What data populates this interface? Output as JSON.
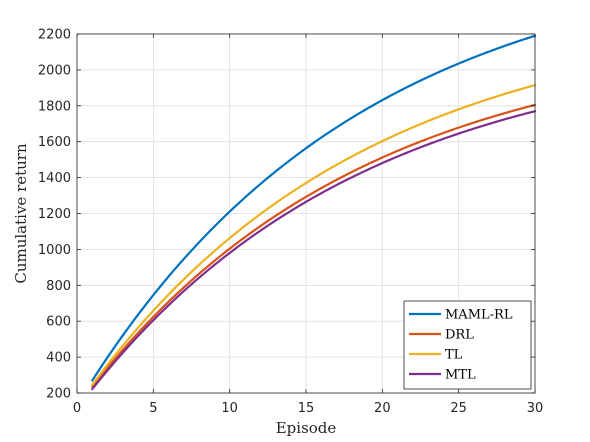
{
  "chart_data": {
    "type": "line",
    "xlabel": "Episode",
    "ylabel": "Cumulative return",
    "xlim": [
      0,
      30
    ],
    "ylim": [
      200,
      2200
    ],
    "xticks": [
      0,
      5,
      10,
      15,
      20,
      25,
      30
    ],
    "yticks": [
      200,
      400,
      600,
      800,
      1000,
      1200,
      1400,
      1600,
      1800,
      2000,
      2200
    ],
    "grid": true,
    "legend_position": "bottom-right",
    "x": [
      1,
      2,
      3,
      4,
      5,
      6,
      7,
      8,
      9,
      10,
      11,
      12,
      13,
      14,
      15,
      16,
      17,
      18,
      19,
      20,
      21,
      22,
      23,
      24,
      25,
      26,
      27,
      28,
      29,
      30
    ],
    "series": [
      {
        "name": "MAML-RL",
        "color": "#0072BD",
        "values": [
          270,
          387,
          498,
          605,
          707,
          804,
          897,
          985,
          1069,
          1149,
          1226,
          1299,
          1368,
          1434,
          1497,
          1557,
          1613,
          1667,
          1718,
          1767,
          1813,
          1856,
          1898,
          1937,
          1974,
          2009,
          2043,
          2074,
          2104,
          2190
        ]
      },
      {
        "name": "DRL",
        "color": "#D95319",
        "values": [
          235,
          331,
          425,
          515,
          600,
          681,
          757,
          830,
          899,
          964,
          1027,
          1086,
          1142,
          1196,
          1247,
          1296,
          1342,
          1386,
          1428,
          1468,
          1506,
          1542,
          1577,
          1610,
          1641,
          1671,
          1700,
          1727,
          1753,
          1805
        ]
      },
      {
        "name": "TL",
        "color": "#EDB120",
        "values": [
          245,
          348,
          447,
          542,
          633,
          719,
          800,
          878,
          951,
          1021,
          1087,
          1151,
          1211,
          1268,
          1322,
          1374,
          1423,
          1470,
          1515,
          1558,
          1598,
          1637,
          1674,
          1709,
          1743,
          1775,
          1805,
          1834,
          1862,
          1915
        ]
      },
      {
        "name": "MTL",
        "color": "#7E2F8E",
        "values": [
          222,
          320,
          414,
          503,
          588,
          668,
          744,
          816,
          884,
          948,
          1009,
          1067,
          1122,
          1174,
          1224,
          1271,
          1316,
          1359,
          1400,
          1439,
          1476,
          1511,
          1545,
          1577,
          1608,
          1637,
          1665,
          1692,
          1717,
          1770
        ]
      }
    ]
  }
}
